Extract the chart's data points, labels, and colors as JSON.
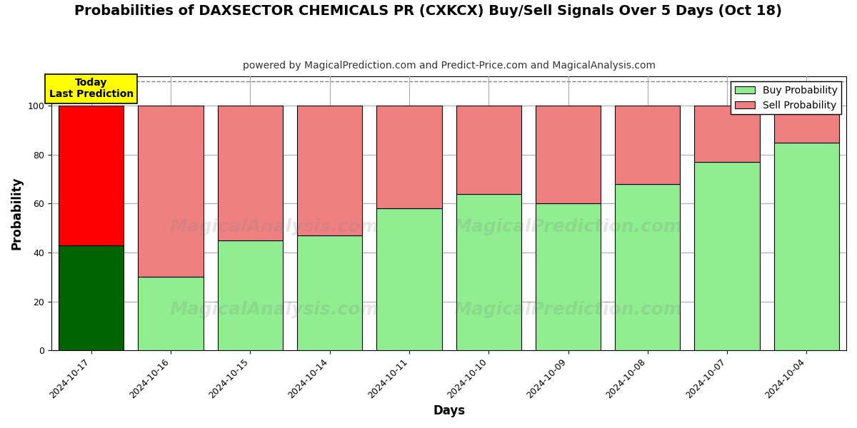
{
  "title": "Probabilities of DAXSECTOR CHEMICALS PR (CXKCX) Buy/Sell Signals Over 5 Days (Oct 18)",
  "subtitle": "powered by MagicalPrediction.com and Predict-Price.com and MagicalAnalysis.com",
  "xlabel": "Days",
  "ylabel": "Probability",
  "dates": [
    "2024-10-17",
    "2024-10-16",
    "2024-10-15",
    "2024-10-14",
    "2024-10-11",
    "2024-10-10",
    "2024-10-09",
    "2024-10-08",
    "2024-10-07",
    "2024-10-04"
  ],
  "buy_values": [
    43,
    30,
    45,
    47,
    58,
    64,
    60,
    68,
    77,
    85
  ],
  "sell_values": [
    57,
    70,
    55,
    53,
    42,
    36,
    40,
    32,
    23,
    15
  ],
  "today_bar_buy_color": "#006400",
  "today_bar_sell_color": "#FF0000",
  "other_bar_buy_color": "#90EE90",
  "other_bar_sell_color": "#F08080",
  "bar_edge_color": "#000000",
  "ylim": [
    0,
    112
  ],
  "yticks": [
    0,
    20,
    40,
    60,
    80,
    100
  ],
  "dashed_line_y": 110,
  "grid_color": "#aaaaaa",
  "background_color": "#ffffff",
  "plot_bg_color": "#ffffff",
  "legend_buy_color": "#90EE90",
  "legend_sell_color": "#F08080",
  "today_label": "Today\nLast Prediction",
  "today_label_bg": "#FFFF00",
  "title_fontsize": 14,
  "subtitle_fontsize": 10,
  "axis_label_fontsize": 12,
  "tick_fontsize": 9,
  "legend_fontsize": 10,
  "bar_width": 0.82
}
